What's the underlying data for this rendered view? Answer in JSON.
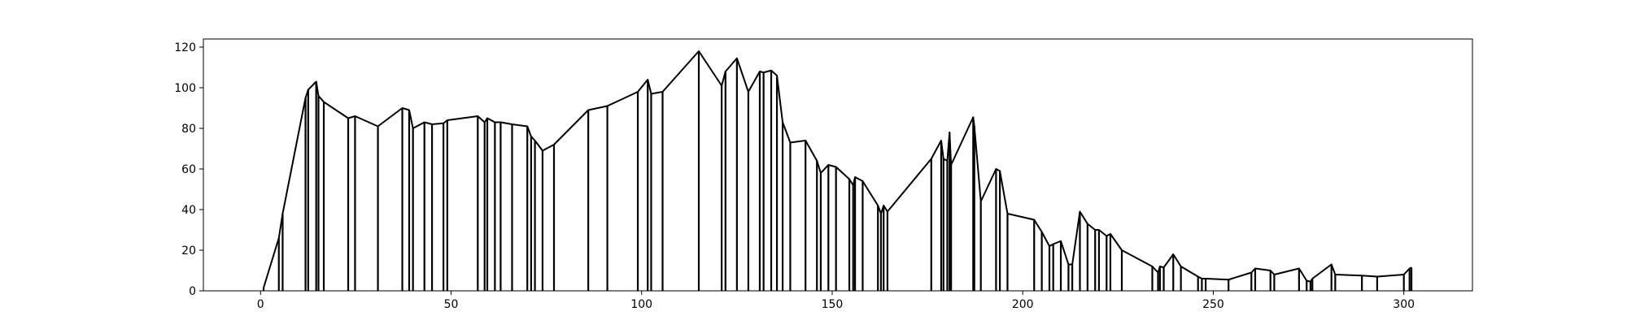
{
  "chart_data": {
    "type": "line",
    "title": "",
    "xlabel": "",
    "ylabel": "",
    "xlim": [
      -15,
      318
    ],
    "ylim": [
      0,
      124
    ],
    "grid": false,
    "legend": "none",
    "style": {
      "line_color": "#000000",
      "drop_lines_to_baseline": true
    },
    "x_ticks": [
      0,
      50,
      100,
      150,
      200,
      250,
      300
    ],
    "y_ticks": [
      0,
      20,
      40,
      60,
      80,
      100,
      120
    ],
    "x_tick_labels": [
      "0",
      "50",
      "100",
      "150",
      "200",
      "250",
      "300"
    ],
    "y_tick_labels": [
      "0",
      "20",
      "40",
      "60",
      "80",
      "100",
      "120"
    ],
    "series": [
      {
        "points": [
          [
            0.8,
            1.5
          ],
          [
            4.8,
            26
          ],
          [
            5.8,
            38
          ],
          [
            11.8,
            95
          ],
          [
            12.5,
            99
          ],
          [
            14.6,
            103
          ],
          [
            15.2,
            96
          ],
          [
            16.6,
            93
          ],
          [
            23,
            85
          ],
          [
            24.8,
            86
          ],
          [
            30.8,
            81
          ],
          [
            37.2,
            90
          ],
          [
            39,
            89
          ],
          [
            40,
            80
          ],
          [
            43,
            83
          ],
          [
            45,
            82
          ],
          [
            48,
            82.5
          ],
          [
            49,
            84
          ],
          [
            57,
            86
          ],
          [
            58.8,
            83
          ],
          [
            59.5,
            85
          ],
          [
            61.5,
            83
          ],
          [
            63,
            83
          ],
          [
            66,
            82
          ],
          [
            70,
            81
          ],
          [
            71,
            76
          ],
          [
            72,
            74
          ],
          [
            74,
            69
          ],
          [
            77,
            72
          ],
          [
            86,
            89
          ],
          [
            91,
            91
          ],
          [
            99,
            98
          ],
          [
            101.6,
            104
          ],
          [
            102.5,
            97
          ],
          [
            105.5,
            98
          ],
          [
            115,
            118
          ],
          [
            121,
            101
          ],
          [
            122,
            108
          ],
          [
            125,
            114.5
          ],
          [
            128,
            98
          ],
          [
            131,
            108
          ],
          [
            132,
            107.5
          ],
          [
            134,
            108.5
          ],
          [
            135.5,
            106
          ],
          [
            137,
            83
          ],
          [
            139,
            73
          ],
          [
            143,
            74
          ],
          [
            146,
            64
          ],
          [
            147,
            58
          ],
          [
            149,
            62
          ],
          [
            151,
            61
          ],
          [
            154.5,
            55
          ],
          [
            155.5,
            52
          ],
          [
            156,
            56
          ],
          [
            158,
            54
          ],
          [
            162,
            42
          ],
          [
            162.8,
            38
          ],
          [
            163.5,
            42
          ],
          [
            164.5,
            39
          ],
          [
            176,
            65
          ],
          [
            178.6,
            74
          ],
          [
            179.2,
            65
          ],
          [
            180.2,
            64
          ],
          [
            180.8,
            78
          ],
          [
            181.2,
            62
          ],
          [
            187,
            85.5
          ],
          [
            187.3,
            81
          ],
          [
            189,
            44
          ],
          [
            193,
            60
          ],
          [
            194,
            59
          ],
          [
            196,
            38
          ],
          [
            203,
            35
          ],
          [
            205,
            29
          ],
          [
            207,
            22
          ],
          [
            208,
            23
          ],
          [
            210,
            24.5
          ],
          [
            212,
            13
          ],
          [
            213,
            13
          ],
          [
            215,
            39
          ],
          [
            217,
            33
          ],
          [
            219,
            30
          ],
          [
            220,
            30
          ],
          [
            222,
            27
          ],
          [
            223,
            28
          ],
          [
            226,
            20
          ],
          [
            234,
            12
          ],
          [
            235.5,
            9
          ],
          [
            236,
            12
          ],
          [
            237,
            11.5
          ],
          [
            239.5,
            18
          ],
          [
            241.5,
            12
          ],
          [
            246,
            7
          ],
          [
            247,
            6
          ],
          [
            248,
            6
          ],
          [
            254,
            5.5
          ],
          [
            260,
            9
          ],
          [
            261,
            11
          ],
          [
            265,
            10
          ],
          [
            266,
            8
          ],
          [
            272.5,
            11
          ],
          [
            274.5,
            5
          ],
          [
            275.5,
            4.5
          ],
          [
            276,
            6
          ],
          [
            281,
            13
          ],
          [
            282,
            8
          ],
          [
            289,
            7.5
          ],
          [
            293,
            7
          ],
          [
            300,
            8
          ],
          [
            301.5,
            11
          ],
          [
            302,
            11.5
          ]
        ]
      }
    ]
  }
}
